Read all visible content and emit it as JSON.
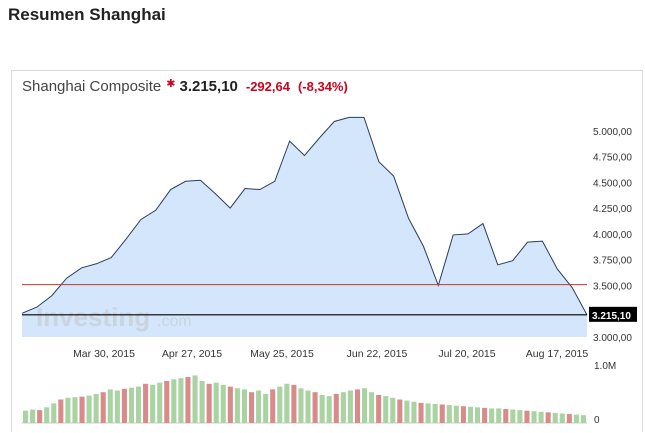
{
  "page": {
    "title": "Resumen Shanghai"
  },
  "quote": {
    "name": "Shanghai Composite",
    "last": "3.215,10",
    "change": "-292,64",
    "change_pct": "(-8,34%)",
    "direction_icon": "down-arrow-icon",
    "color_down": "#d0021b"
  },
  "watermark": {
    "brand": "Investing",
    "suffix": ".com"
  },
  "chart_data": {
    "type": "area",
    "x": [
      "Mar 30, 2015",
      "Apr 27, 2015",
      "May 25, 2015",
      "Jun 22, 2015",
      "Jul 20, 2015",
      "Aug 17, 2015"
    ],
    "y_ticks": [
      "5.000,00",
      "4.750,00",
      "4.500,00",
      "4.250,00",
      "4.000,00",
      "3.750,00",
      "3.500,00",
      "3.250,00",
      "3.000,00"
    ],
    "ylim": [
      3000,
      5250
    ],
    "price_series": [
      3230,
      3290,
      3400,
      3570,
      3670,
      3710,
      3770,
      3950,
      4140,
      4230,
      4430,
      4510,
      4520,
      4390,
      4250,
      4440,
      4430,
      4510,
      4900,
      4760,
      4930,
      5090,
      5130,
      5130,
      4700,
      4560,
      4150,
      3880,
      3500,
      3990,
      4000,
      4100,
      3700,
      3740,
      3920,
      3930,
      3660,
      3480,
      3215
    ],
    "reference_level": 3507.74,
    "last_value_label": "3.215,10",
    "volume_label": "1.0M",
    "volume_zero_label": "0",
    "volume_values": [
      0.22,
      0.24,
      0.23,
      0.28,
      0.35,
      0.42,
      0.45,
      0.46,
      0.47,
      0.49,
      0.52,
      0.55,
      0.6,
      0.58,
      0.61,
      0.63,
      0.65,
      0.7,
      0.68,
      0.72,
      0.75,
      0.78,
      0.8,
      0.82,
      0.85,
      0.75,
      0.7,
      0.72,
      0.68,
      0.65,
      0.62,
      0.6,
      0.55,
      0.58,
      0.52,
      0.6,
      0.65,
      0.7,
      0.68,
      0.62,
      0.58,
      0.55,
      0.5,
      0.48,
      0.52,
      0.55,
      0.58,
      0.6,
      0.62,
      0.55,
      0.5,
      0.48,
      0.45,
      0.42,
      0.4,
      0.38,
      0.36,
      0.35,
      0.34,
      0.33,
      0.32,
      0.31,
      0.3,
      0.29,
      0.28,
      0.27,
      0.26,
      0.26,
      0.25,
      0.24,
      0.23,
      0.22,
      0.21,
      0.2,
      0.19,
      0.18,
      0.17,
      0.16,
      0.15,
      0.14
    ],
    "colors": {
      "line": "#2b3d5c",
      "fill": "#d4e6fb",
      "reference_line": "#c0392b",
      "last_line": "#000000",
      "volume_up": "#a9d3a2",
      "volume_down": "#d98a8a"
    }
  }
}
